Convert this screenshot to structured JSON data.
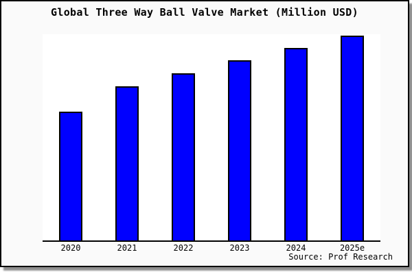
{
  "window": {
    "background_color": "#fafafa",
    "plot_background_color": "#ffffff",
    "border_color": "#000000",
    "shadow_color": "#8f8f8f"
  },
  "chart_data": {
    "type": "bar",
    "title": "Global Three Way Ball Valve Market (Million USD)",
    "categories": [
      "2020",
      "2021",
      "2022",
      "2023",
      "2024",
      "2025e"
    ],
    "values": [
      63,
      75.3,
      81.6,
      88,
      94,
      100
    ],
    "note": "No y-axis ticks or gridlines are shown; values estimated from relative bar heights with 2025e normalized to 100",
    "xlabel": "",
    "ylabel": "",
    "ylim": [
      0,
      100.7
    ],
    "grid": false,
    "legend": false,
    "bar_color": "#0000ff",
    "bar_edge_color": "#000000",
    "source_label": "Source: Prof Research"
  }
}
